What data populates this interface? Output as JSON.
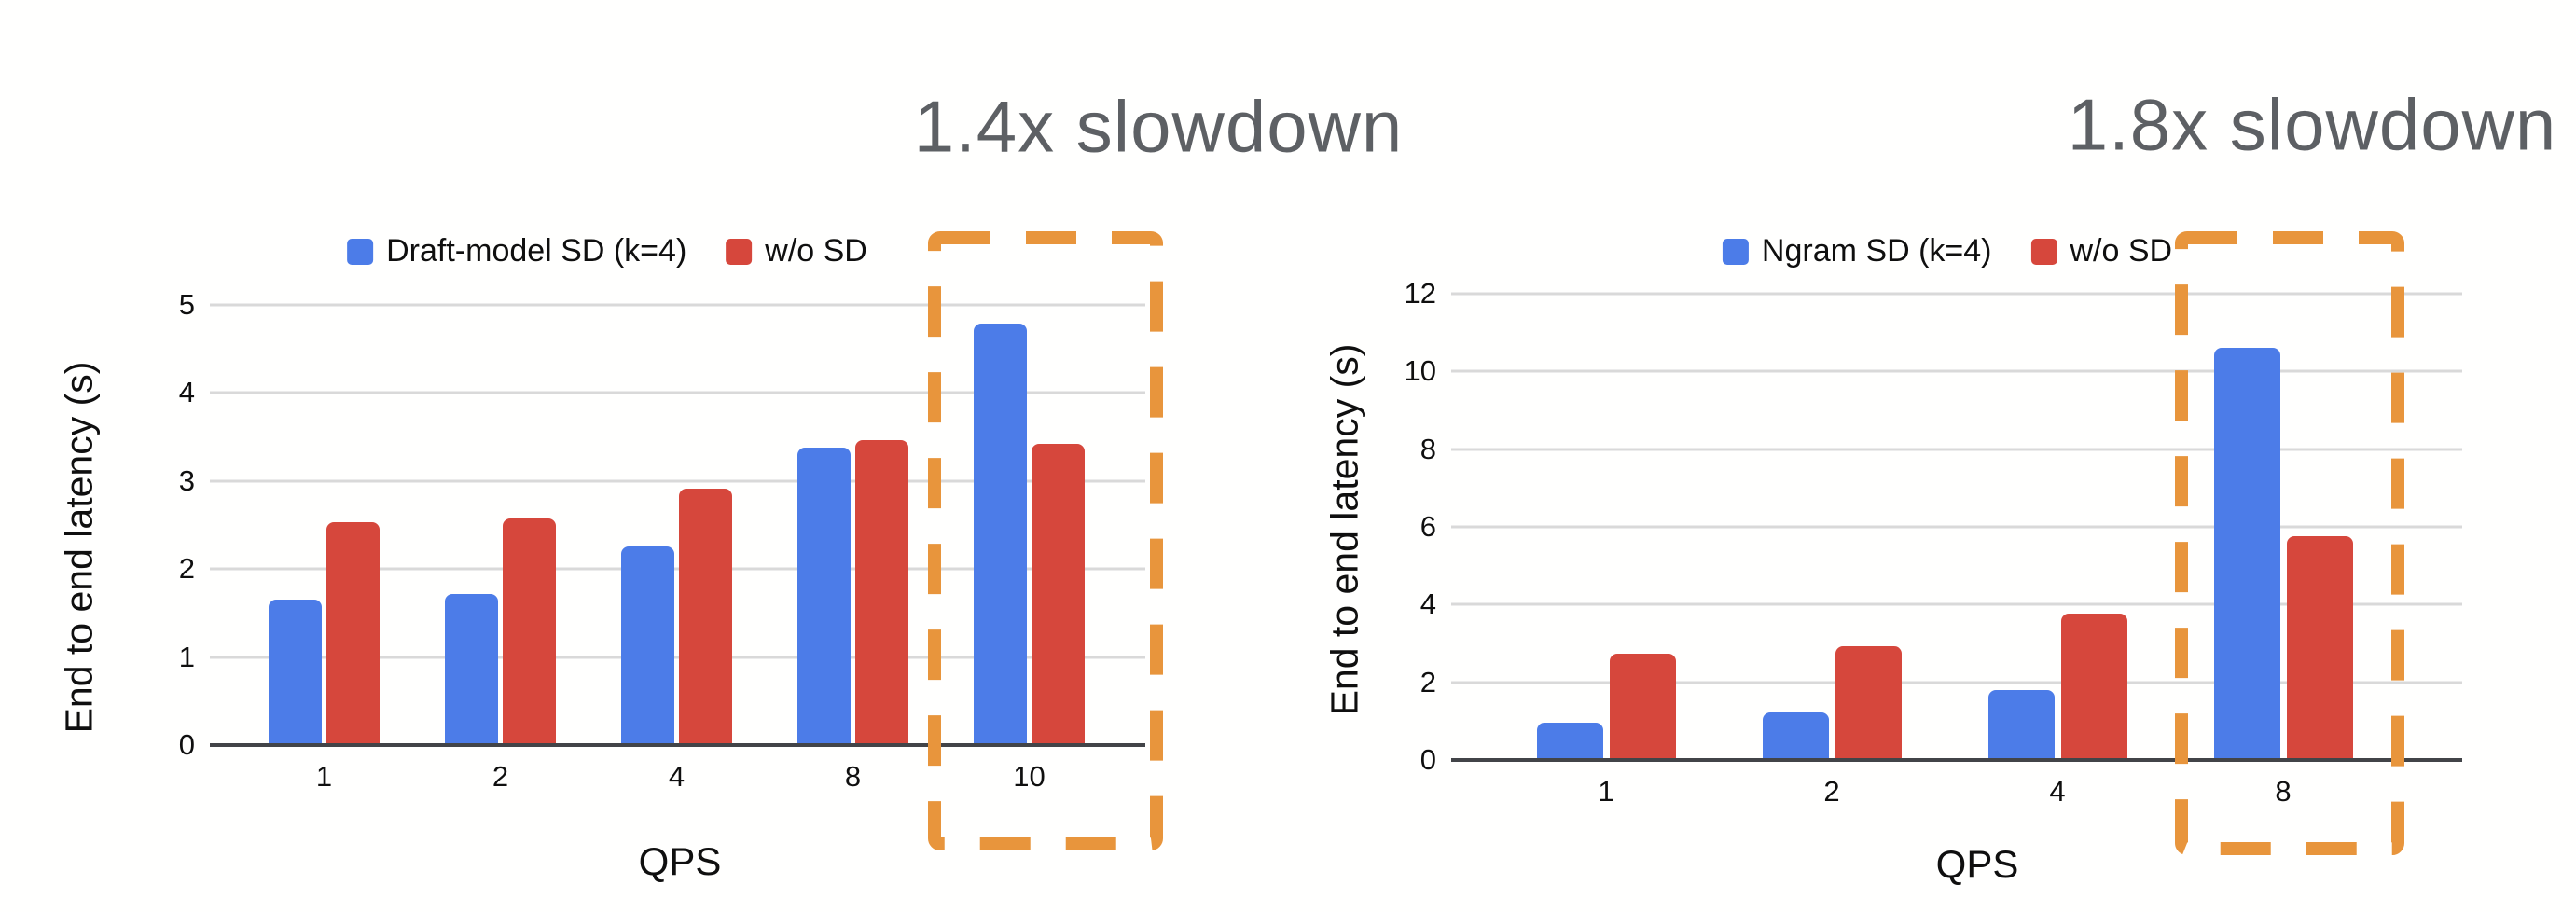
{
  "page": {
    "background": "#FFFFFE"
  },
  "colors": {
    "series_blue": "#4C7CE8",
    "series_red": "#D6473C",
    "highlight_orange": "#E8953C",
    "title_gray": "#5D6064",
    "gridline": "#D9D9D9",
    "axis_line": "#424448",
    "text": "#0F0F0F",
    "background": "#FFFFFE"
  },
  "chart_data": [
    {
      "type": "bar",
      "title": "1.4x slowdown",
      "categories": [
        "1",
        "2",
        "4",
        "8",
        "10"
      ],
      "series": [
        {
          "name": "Draft-model SD (k=4)",
          "color": "#4C7CE8",
          "values": [
            1.65,
            1.72,
            2.26,
            3.38,
            4.79
          ]
        },
        {
          "name": "w/o SD",
          "color": "#D6473C",
          "values": [
            2.53,
            2.57,
            2.91,
            3.46,
            3.42
          ]
        }
      ],
      "xlabel": "QPS",
      "ylabel": "End to end latency (s)",
      "ylim": [
        0,
        5
      ],
      "yticks": [
        0,
        1,
        2,
        3,
        4,
        5
      ],
      "grid": true,
      "legend_position": "top",
      "highlight": {
        "category": "10",
        "style": "orange-dashed-box",
        "note": "1.4x slowdown"
      }
    },
    {
      "type": "bar",
      "title": "1.8x slowdown",
      "categories": [
        "1",
        "2",
        "4",
        "8"
      ],
      "series": [
        {
          "name": "Ngram SD (k=4)",
          "color": "#4C7CE8",
          "values": [
            0.95,
            1.22,
            1.8,
            10.6
          ]
        },
        {
          "name": "w/o SD",
          "color": "#D6473C",
          "values": [
            2.73,
            2.94,
            3.77,
            5.76
          ]
        }
      ],
      "xlabel": "QPS",
      "ylabel": "End to end latency (s)",
      "ylim": [
        0,
        12
      ],
      "yticks": [
        0,
        2,
        4,
        6,
        8,
        10,
        12
      ],
      "grid": true,
      "legend_position": "top",
      "highlight": {
        "category": "8",
        "style": "orange-dashed-box",
        "note": "1.8x slowdown"
      }
    }
  ]
}
